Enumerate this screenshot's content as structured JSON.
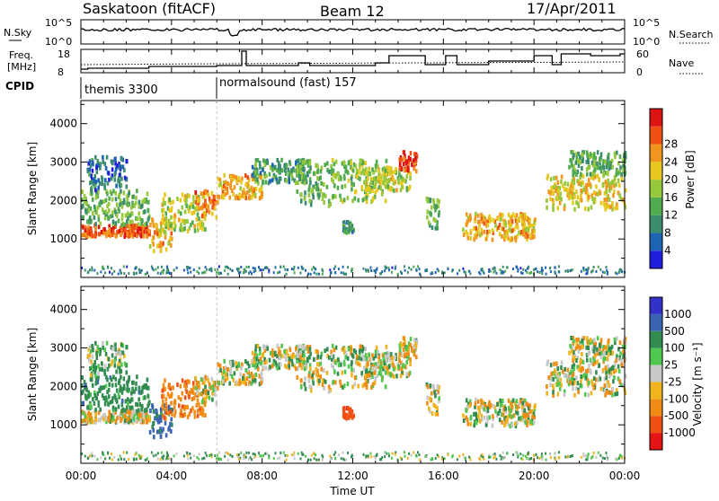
{
  "header": {
    "title": "Saskatoon (fitACF)",
    "beam": "Beam 12",
    "date": "17/Apr/2011"
  },
  "summary_panel": {
    "left_label": "N.Sky",
    "right_label": "N.Search",
    "left_ticks": [
      "10^5",
      "10^0"
    ],
    "right_ticks": [
      "10^5",
      "10^0"
    ]
  },
  "freq_panel": {
    "left_label_1": "Freq.",
    "left_label_2": "[MHz]",
    "right_label": "Nave",
    "left_ticks": [
      "18",
      "8"
    ],
    "right_ticks": [
      "60",
      "0"
    ]
  },
  "cpid": {
    "label": "CPID",
    "modes": [
      {
        "name": "themis 3300",
        "start_hour": 0.0
      },
      {
        "name": "normalsound (fast) 157",
        "start_hour": 6.0
      }
    ]
  },
  "x_axis": {
    "label": "Time UT",
    "ticks": [
      "00:00",
      "04:00",
      "08:00",
      "12:00",
      "16:00",
      "20:00",
      "00:00"
    ],
    "tick_hours": [
      0,
      4,
      8,
      12,
      16,
      20,
      24
    ]
  },
  "power_panel": {
    "ylabel": "Slant Range [km]",
    "y_ticks": [
      "1000",
      "2000",
      "3000",
      "4000"
    ],
    "y_tick_values": [
      1000,
      2000,
      3000,
      4000
    ],
    "ylim": [
      0,
      4600
    ],
    "colorbar_label": "Power [dB]",
    "colorbar_ticks": [
      "4",
      "8",
      "12",
      "16",
      "20",
      "24",
      "28"
    ],
    "colorbar_colors": [
      "#1e1edc",
      "#1e64b4",
      "#3c8c6e",
      "#50aa50",
      "#96c83c",
      "#e6c81e",
      "#f0961e",
      "#f05014",
      "#dc1414"
    ]
  },
  "velocity_panel": {
    "ylabel": "Slant Range [km]",
    "y_ticks": [
      "1000",
      "2000",
      "3000",
      "4000"
    ],
    "y_tick_values": [
      1000,
      2000,
      3000,
      4000
    ],
    "ylim": [
      0,
      4600
    ],
    "colorbar_label": "Velocity [m s⁻¹]",
    "colorbar_ticks": [
      "1000",
      "500",
      "100",
      "25",
      "-25",
      "-100",
      "-500",
      "-1000"
    ],
    "colorbar_colors": [
      "#3232c8",
      "#3c64b4",
      "#328c50",
      "#50c850",
      "#c8c8c8",
      "#f0b41e",
      "#f08c14",
      "#f05014",
      "#e61414"
    ]
  },
  "chart_data": {
    "type": "heatmap",
    "x_unit": "hours UT",
    "y_unit": "km",
    "echo_regions": [
      {
        "t0": 0.0,
        "t1": 3.0,
        "r0": 1000,
        "r1": 1300,
        "power": 26,
        "vel": -30
      },
      {
        "t0": 0.0,
        "t1": 3.0,
        "r0": 1300,
        "r1": 2200,
        "power": 14,
        "vel": 150
      },
      {
        "t0": 0.2,
        "t1": 2.0,
        "r0": 2200,
        "r1": 3100,
        "power": 8,
        "vel": 50
      },
      {
        "t0": 3.0,
        "t1": 4.0,
        "r0": 600,
        "r1": 1500,
        "power": 22,
        "vel": 300
      },
      {
        "t0": 3.5,
        "t1": 5.5,
        "r0": 1100,
        "r1": 2100,
        "power": 18,
        "vel": -200
      },
      {
        "t0": 5.0,
        "t1": 6.0,
        "r0": 1500,
        "r1": 2200,
        "power": 24,
        "vel": 0
      },
      {
        "t0": 6.0,
        "t1": 8.0,
        "r0": 2000,
        "r1": 2600,
        "power": 22,
        "vel": 0
      },
      {
        "t0": 7.5,
        "t1": 10.0,
        "r0": 2400,
        "r1": 3000,
        "power": 12,
        "vel": 0
      },
      {
        "t0": 9.5,
        "t1": 11.0,
        "r0": 1800,
        "r1": 3000,
        "power": 14,
        "vel": 0
      },
      {
        "t0": 11.0,
        "t1": 13.5,
        "r0": 1900,
        "r1": 3000,
        "power": 16,
        "vel": 0
      },
      {
        "t0": 12.5,
        "t1": 14.5,
        "r0": 2200,
        "r1": 2800,
        "power": 18,
        "vel": 0
      },
      {
        "t0": 14.0,
        "t1": 14.8,
        "r0": 2700,
        "r1": 3200,
        "power": 28,
        "vel": -30
      },
      {
        "t0": 15.2,
        "t1": 15.8,
        "r0": 1200,
        "r1": 2000,
        "power": 14,
        "vel": 0
      },
      {
        "t0": 16.8,
        "t1": 20.0,
        "r0": 900,
        "r1": 1600,
        "power": 22,
        "vel": 0
      },
      {
        "t0": 20.5,
        "t1": 24.0,
        "r0": 1700,
        "r1": 2600,
        "power": 20,
        "vel": 0
      },
      {
        "t0": 21.5,
        "t1": 24.0,
        "r0": 2600,
        "r1": 3200,
        "power": 14,
        "vel": 0
      },
      {
        "t0": 11.5,
        "t1": 12.0,
        "r0": 1100,
        "r1": 1400,
        "power": 12,
        "vel": -500
      }
    ]
  }
}
